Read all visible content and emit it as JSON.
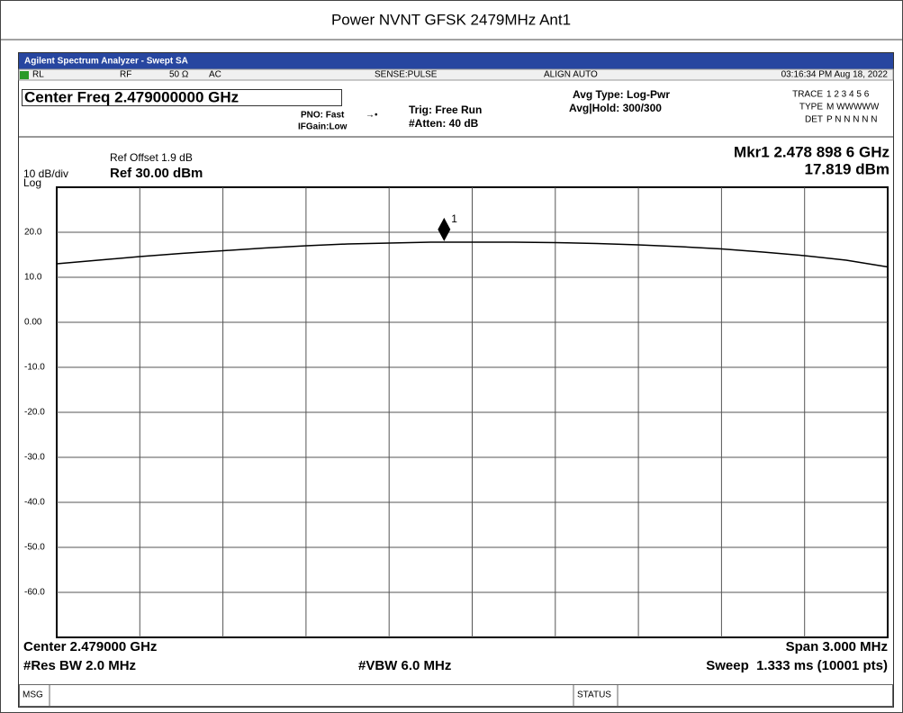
{
  "title": "Power NVNT GFSK 2479MHz Ant1",
  "window_title": "Agilent Spectrum Analyzer - Swept SA",
  "status_row": {
    "rl": "RL",
    "rf": "RF",
    "impedance": "50 Ω",
    "coupling": "AC",
    "sense": "SENSE:PULSE",
    "align": "ALIGN AUTO",
    "datetime": "03:16:34 PM Aug 18, 2022"
  },
  "settings": {
    "center_freq": "Center Freq 2.479000000 GHz",
    "pno": "PNO: Fast",
    "ifgain": "IFGain:Low",
    "trig": "Trig: Free Run",
    "atten": "#Atten: 40 dB",
    "avg_type": "Avg Type: Log-Pwr",
    "avg_hold": "Avg|Hold: 300/300",
    "trace_label": "TRACE",
    "trace_nums": "1 2 3 4 5 6",
    "type_label": "TYPE",
    "type_vals": "M WWWWW",
    "det_label": "DET",
    "det_vals": "P N N N N N"
  },
  "plot_info": {
    "ref_offset": "Ref Offset 1.9 dB",
    "scale": "10 dB/div",
    "ref_level": "Ref 30.00 dBm",
    "log": "Log",
    "mkr_freq": "Mkr1 2.478 898 6 GHz",
    "mkr_level": "17.819 dBm"
  },
  "chart_data": {
    "type": "line",
    "x": [
      2.4775,
      2.47765,
      2.4778,
      2.47795,
      2.4781,
      2.47825,
      2.4784,
      2.47855,
      2.4787,
      2.47885,
      2.479,
      2.47915,
      2.4793,
      2.47945,
      2.4796,
      2.47975,
      2.4799,
      2.48005,
      2.4802,
      2.48035,
      2.4805
    ],
    "series": [
      {
        "name": "Trace 1",
        "color": "#000000",
        "values": [
          13.0,
          13.8,
          14.6,
          15.3,
          15.9,
          16.5,
          17.0,
          17.4,
          17.6,
          17.8,
          17.8,
          17.8,
          17.7,
          17.5,
          17.2,
          16.8,
          16.3,
          15.6,
          14.8,
          13.8,
          12.3
        ]
      }
    ],
    "marker": {
      "label": "1",
      "x": 2.4788986,
      "y": 17.819
    },
    "xlim": [
      2.4775,
      2.4805
    ],
    "ylim": [
      -70,
      30
    ],
    "yticks": [
      {
        "value": 20,
        "label": "20.0"
      },
      {
        "value": 10,
        "label": "10.0"
      },
      {
        "value": 0,
        "label": "0.00"
      },
      {
        "value": -10,
        "label": "-10.0"
      },
      {
        "value": -20,
        "label": "-20.0"
      },
      {
        "value": -30,
        "label": "-30.0"
      },
      {
        "value": -40,
        "label": "-40.0"
      },
      {
        "value": -50,
        "label": "-50.0"
      },
      {
        "value": -60,
        "label": "-60.0"
      }
    ],
    "grid": true
  },
  "footer": {
    "center": "Center 2.479000 GHz",
    "span": "Span 3.000 MHz",
    "rbw": "#Res BW 2.0 MHz",
    "vbw": "#VBW 6.0 MHz",
    "sweep": "Sweep  1.333 ms (10001 pts)"
  },
  "status_bar": {
    "msg": "MSG",
    "status": "STATUS"
  }
}
